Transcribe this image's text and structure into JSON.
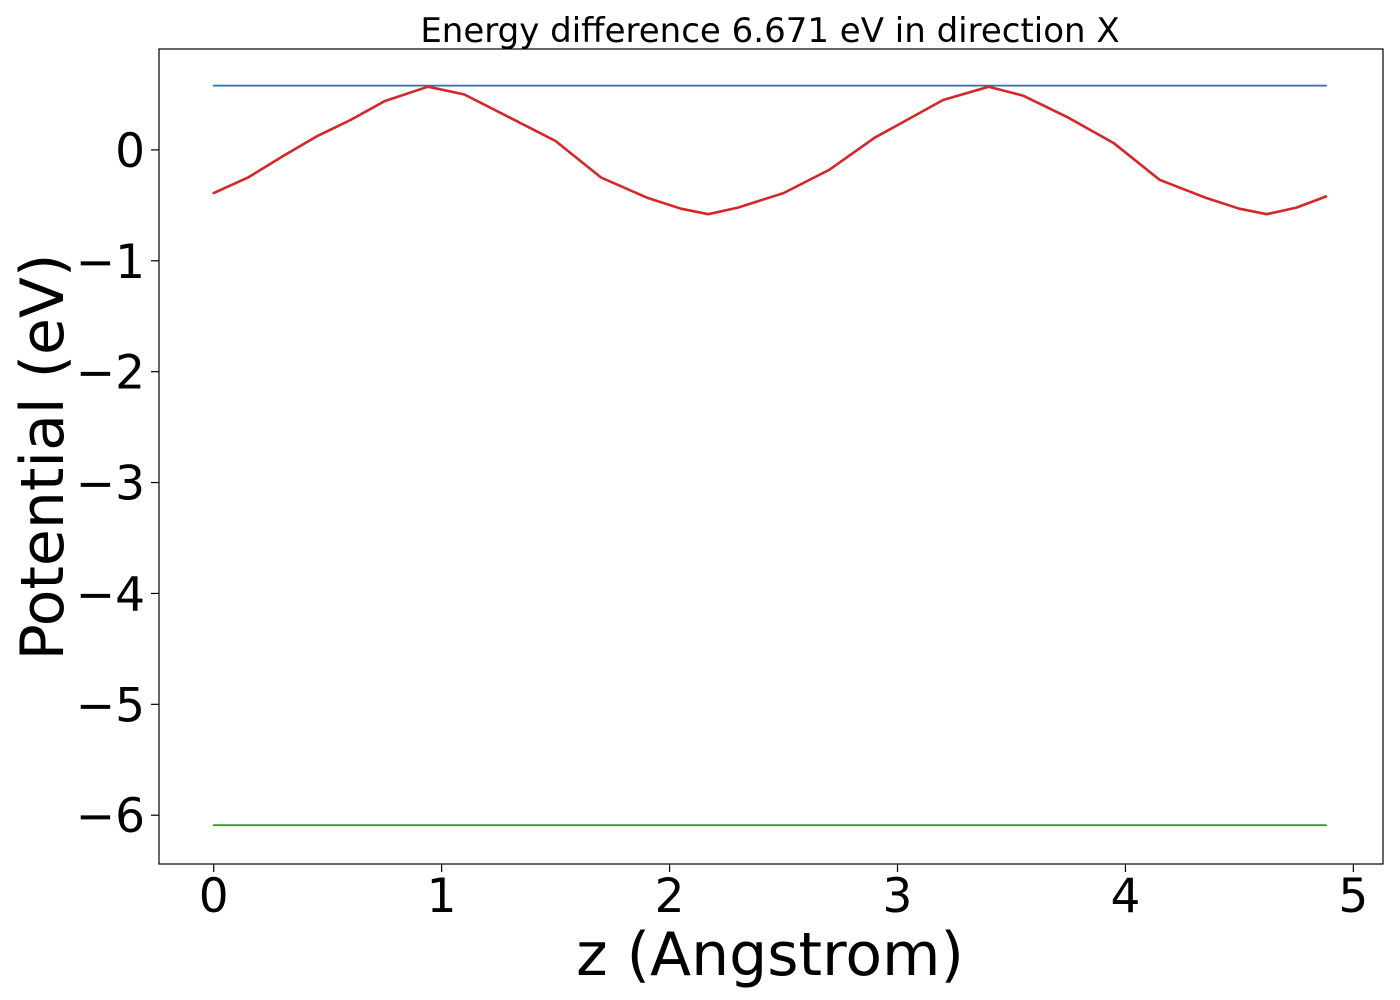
{
  "chart_data": {
    "type": "line",
    "title": "Energy difference 6.671 eV in direction X",
    "xlabel": "z (Angstrom)",
    "ylabel": "Potential (eV)",
    "xlim": [
      -0.24,
      5.13
    ],
    "ylim": [
      -6.44,
      0.91
    ],
    "xticks": [
      0,
      1,
      2,
      3,
      4,
      5
    ],
    "xtick_labels": [
      "0",
      "1",
      "2",
      "3",
      "4",
      "5"
    ],
    "yticks": [
      0,
      -1,
      -2,
      -3,
      -4,
      -5,
      -6
    ],
    "ytick_labels": [
      "0",
      "−1",
      "−2",
      "−3",
      "−4",
      "−5",
      "−6"
    ],
    "grid": false,
    "series": [
      {
        "color": "#1f77b4",
        "x": [
          0,
          4.88
        ],
        "y": [
          0.58,
          0.58
        ]
      },
      {
        "color": "#2ca02c",
        "x": [
          0,
          4.88
        ],
        "y": [
          -6.09,
          -6.09
        ]
      },
      {
        "color": "#d62728",
        "x": [
          0,
          0.15,
          0.3,
          0.45,
          0.6,
          0.75,
          0.94,
          1.1,
          1.3,
          1.5,
          1.7,
          1.9,
          2.05,
          2.17,
          2.3,
          2.5,
          2.7,
          2.9,
          3.05,
          3.2,
          3.4,
          3.55,
          3.75,
          3.95,
          4.15,
          4.35,
          4.5,
          4.62,
          4.75,
          4.88
        ],
        "y": [
          -0.39,
          -0.25,
          -0.06,
          0.12,
          0.27,
          0.44,
          0.57,
          0.5,
          0.29,
          0.08,
          -0.25,
          -0.43,
          -0.53,
          -0.58,
          -0.52,
          -0.39,
          -0.18,
          0.11,
          0.28,
          0.45,
          0.57,
          0.49,
          0.29,
          0.06,
          -0.27,
          -0.43,
          -0.53,
          -0.58,
          -0.52,
          -0.42
        ]
      }
    ]
  }
}
